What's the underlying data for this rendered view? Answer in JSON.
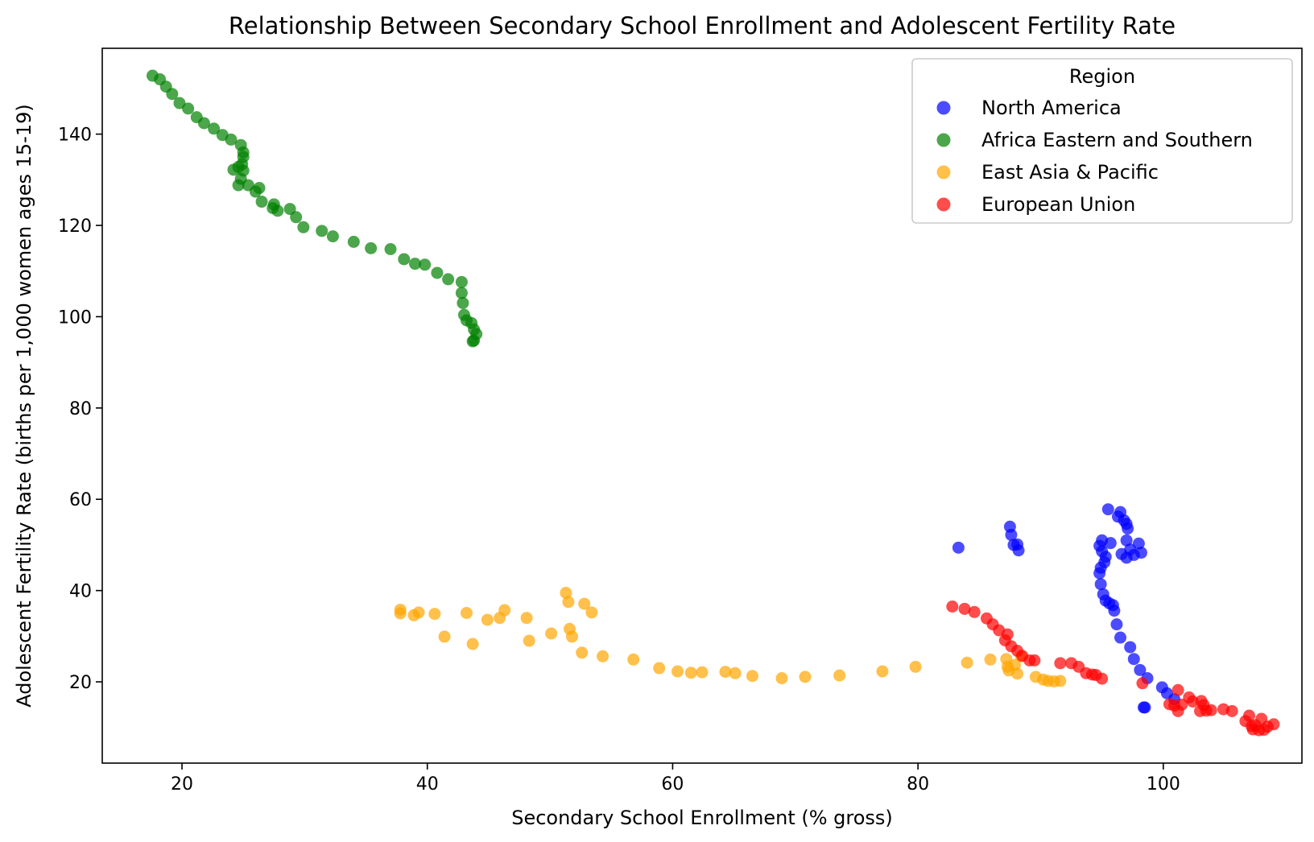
{
  "chart_data": {
    "type": "scatter",
    "title": "Relationship Between Secondary School Enrollment and Adolescent Fertility Rate",
    "xlabel": "Secondary School Enrollment (% gross)",
    "ylabel": "Adolescent Fertility Rate (births per 1,000 women ages 15-19)",
    "xlim": [
      13.5,
      111.3
    ],
    "ylim": [
      2.2,
      158.8
    ],
    "xticks": [
      20,
      40,
      60,
      80,
      100
    ],
    "yticks": [
      20,
      40,
      60,
      80,
      100,
      120,
      140
    ],
    "grid": false,
    "legend": {
      "title": "Region",
      "position": "top-right"
    },
    "series": [
      {
        "name": "North America",
        "color": "#0000ff",
        "points": [
          [
            83.3,
            49.4
          ],
          [
            87.5,
            54.0
          ],
          [
            87.6,
            52.2
          ],
          [
            88.1,
            50.1
          ],
          [
            88.2,
            48.8
          ],
          [
            87.8,
            50.0
          ],
          [
            95.5,
            57.8
          ],
          [
            96.5,
            57.2
          ],
          [
            96.8,
            55.4
          ],
          [
            96.3,
            56.2
          ],
          [
            97.0,
            54.6
          ],
          [
            97.1,
            53.6
          ],
          [
            97.0,
            51.0
          ],
          [
            98.0,
            50.3
          ],
          [
            97.3,
            49.0
          ],
          [
            98.2,
            48.3
          ],
          [
            96.6,
            48.0
          ],
          [
            97.0,
            47.2
          ],
          [
            97.6,
            47.8
          ],
          [
            95.0,
            51.0
          ],
          [
            95.7,
            50.4
          ],
          [
            94.8,
            49.8
          ],
          [
            95.0,
            48.6
          ],
          [
            95.3,
            47.4
          ],
          [
            95.2,
            46.2
          ],
          [
            94.9,
            45.0
          ],
          [
            94.8,
            43.8
          ],
          [
            94.9,
            41.4
          ],
          [
            95.1,
            39.2
          ],
          [
            95.3,
            37.8
          ],
          [
            95.6,
            37.2
          ],
          [
            95.9,
            36.8
          ],
          [
            96.0,
            35.6
          ],
          [
            96.2,
            32.6
          ],
          [
            96.5,
            29.7
          ],
          [
            97.3,
            27.6
          ],
          [
            97.6,
            25.0
          ],
          [
            98.1,
            22.6
          ],
          [
            98.7,
            20.8
          ],
          [
            99.9,
            18.8
          ],
          [
            100.3,
            17.5
          ],
          [
            100.9,
            16.2
          ],
          [
            98.4,
            14.4
          ],
          [
            98.5,
            14.4
          ]
        ]
      },
      {
        "name": "Africa Eastern and Southern",
        "color": "#008000",
        "points": [
          [
            17.6,
            152.8
          ],
          [
            18.2,
            152.0
          ],
          [
            18.7,
            150.4
          ],
          [
            19.2,
            148.8
          ],
          [
            19.8,
            146.8
          ],
          [
            20.5,
            145.6
          ],
          [
            21.2,
            143.7
          ],
          [
            21.8,
            142.4
          ],
          [
            22.6,
            141.2
          ],
          [
            23.3,
            139.8
          ],
          [
            24.0,
            138.8
          ],
          [
            24.8,
            137.6
          ],
          [
            25.0,
            136.0
          ],
          [
            25.0,
            135.0
          ],
          [
            24.9,
            133.4
          ],
          [
            24.6,
            132.8
          ],
          [
            24.2,
            132.2
          ],
          [
            25.0,
            132.0
          ],
          [
            24.8,
            130.2
          ],
          [
            24.6,
            128.8
          ],
          [
            25.4,
            128.8
          ],
          [
            26.0,
            127.4
          ],
          [
            26.3,
            128.2
          ],
          [
            26.5,
            125.2
          ],
          [
            27.5,
            124.6
          ],
          [
            27.4,
            123.8
          ],
          [
            27.8,
            123.2
          ],
          [
            28.8,
            123.6
          ],
          [
            29.3,
            121.8
          ],
          [
            29.9,
            119.6
          ],
          [
            31.4,
            118.8
          ],
          [
            32.3,
            117.6
          ],
          [
            34.0,
            116.4
          ],
          [
            35.4,
            115.0
          ],
          [
            37.0,
            114.8
          ],
          [
            38.1,
            112.6
          ],
          [
            39.0,
            111.6
          ],
          [
            39.8,
            111.4
          ],
          [
            40.8,
            109.6
          ],
          [
            41.7,
            108.2
          ],
          [
            42.8,
            107.6
          ],
          [
            42.8,
            105.2
          ],
          [
            42.9,
            103.0
          ],
          [
            43.0,
            100.4
          ],
          [
            43.2,
            99.2
          ],
          [
            43.6,
            98.6
          ],
          [
            43.8,
            97.2
          ],
          [
            44.0,
            96.2
          ],
          [
            43.8,
            94.8
          ],
          [
            43.7,
            94.6
          ]
        ]
      },
      {
        "name": "East Asia & Pacific",
        "color": "#ffa500",
        "points": [
          [
            37.8,
            35.8
          ],
          [
            37.8,
            35.0
          ],
          [
            38.9,
            34.6
          ],
          [
            39.3,
            35.2
          ],
          [
            40.6,
            34.9
          ],
          [
            41.4,
            29.9
          ],
          [
            43.2,
            35.1
          ],
          [
            43.7,
            28.3
          ],
          [
            44.9,
            33.6
          ],
          [
            45.9,
            34.0
          ],
          [
            46.3,
            35.7
          ],
          [
            48.1,
            34.0
          ],
          [
            48.3,
            29.0
          ],
          [
            50.1,
            30.6
          ],
          [
            51.3,
            39.5
          ],
          [
            51.5,
            37.5
          ],
          [
            51.6,
            31.6
          ],
          [
            51.8,
            29.9
          ],
          [
            52.6,
            26.4
          ],
          [
            52.8,
            37.1
          ],
          [
            53.4,
            35.2
          ],
          [
            54.3,
            25.6
          ],
          [
            56.8,
            24.9
          ],
          [
            58.9,
            23.0
          ],
          [
            60.4,
            22.3
          ],
          [
            61.5,
            22.0
          ],
          [
            62.4,
            22.1
          ],
          [
            64.3,
            22.2
          ],
          [
            65.1,
            21.9
          ],
          [
            66.5,
            21.3
          ],
          [
            68.9,
            20.8
          ],
          [
            70.8,
            21.1
          ],
          [
            73.6,
            21.4
          ],
          [
            77.1,
            22.3
          ],
          [
            79.8,
            23.3
          ],
          [
            84.0,
            24.2
          ],
          [
            85.9,
            24.9
          ],
          [
            87.2,
            25.0
          ],
          [
            87.3,
            23.3
          ],
          [
            87.4,
            22.5
          ],
          [
            87.9,
            23.7
          ],
          [
            88.1,
            21.8
          ],
          [
            88.4,
            25.6
          ],
          [
            89.6,
            21.1
          ],
          [
            90.2,
            20.5
          ],
          [
            90.6,
            20.2
          ],
          [
            91.1,
            20.1
          ],
          [
            91.6,
            20.2
          ]
        ]
      },
      {
        "name": "European Union",
        "color": "#ff0000",
        "points": [
          [
            82.8,
            36.5
          ],
          [
            83.8,
            36.0
          ],
          [
            84.6,
            35.3
          ],
          [
            85.6,
            33.9
          ],
          [
            86.1,
            32.6
          ],
          [
            86.6,
            31.3
          ],
          [
            87.3,
            30.4
          ],
          [
            87.1,
            29.1
          ],
          [
            87.6,
            27.8
          ],
          [
            88.1,
            26.8
          ],
          [
            88.5,
            25.7
          ],
          [
            89.1,
            24.7
          ],
          [
            89.5,
            24.7
          ],
          [
            91.6,
            24.1
          ],
          [
            92.5,
            24.1
          ],
          [
            93.1,
            23.3
          ],
          [
            93.7,
            21.9
          ],
          [
            94.2,
            21.6
          ],
          [
            94.5,
            21.5
          ],
          [
            95.0,
            20.7
          ],
          [
            98.3,
            19.7
          ],
          [
            100.5,
            15.1
          ],
          [
            100.9,
            14.8
          ],
          [
            101.2,
            18.2
          ],
          [
            101.2,
            13.6
          ],
          [
            101.5,
            15.0
          ],
          [
            102.1,
            16.6
          ],
          [
            102.4,
            15.7
          ],
          [
            103.1,
            15.8
          ],
          [
            103.0,
            13.6
          ],
          [
            103.3,
            14.9
          ],
          [
            103.5,
            13.7
          ],
          [
            103.9,
            13.8
          ],
          [
            104.9,
            14.0
          ],
          [
            105.6,
            13.6
          ],
          [
            106.7,
            11.4
          ],
          [
            107.0,
            12.6
          ],
          [
            107.2,
            10.3
          ],
          [
            107.3,
            9.6
          ],
          [
            107.5,
            10.5
          ],
          [
            107.8,
            9.4
          ],
          [
            108.0,
            11.9
          ],
          [
            108.2,
            9.5
          ],
          [
            108.5,
            10.2
          ],
          [
            109.0,
            10.7
          ]
        ]
      }
    ]
  }
}
